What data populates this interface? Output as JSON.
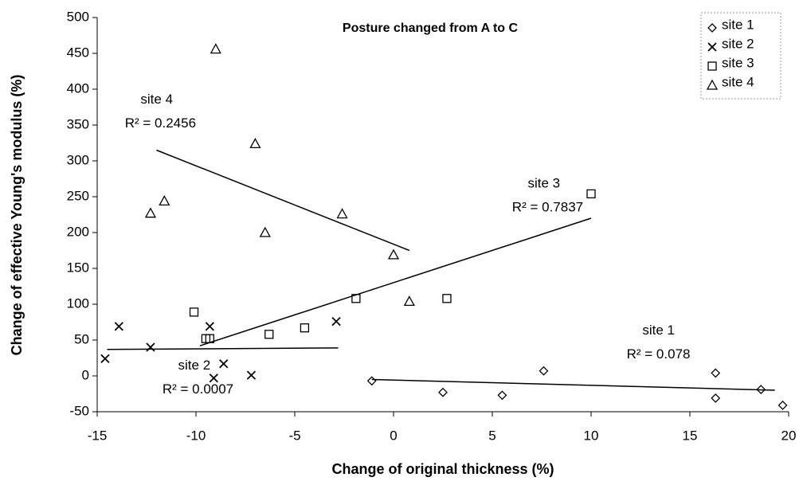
{
  "chart_data": {
    "type": "scatter",
    "title": "Posture changed from A to C",
    "x_label": "Change of original thickness (%)",
    "y_label": "Change of effective Young's modulus (%)",
    "xlim": [
      -15,
      20
    ],
    "xticks": [
      -15,
      -10,
      -5,
      0,
      5,
      10,
      15,
      20
    ],
    "ylim": [
      -50,
      500
    ],
    "yticks": [
      -50,
      0,
      50,
      100,
      150,
      200,
      250,
      300,
      350,
      400,
      450,
      500
    ],
    "grid": false,
    "legend": "upper right",
    "series": [
      {
        "name": "site 1",
        "marker": "diamond",
        "color": "#000000",
        "x": [
          -1.1,
          2.5,
          5.5,
          7.6,
          16.3,
          16.3,
          18.6,
          19.7
        ],
        "values": [
          -7,
          -23,
          -27,
          7,
          4,
          -31,
          -19,
          -41
        ]
      },
      {
        "name": "site 2",
        "marker": "x",
        "color": "#000000",
        "x": [
          -14.6,
          -13.9,
          -12.3,
          -9.1,
          -9.3,
          -8.6,
          -7.2,
          -2.9
        ],
        "values": [
          24,
          69,
          40,
          -3,
          69,
          17,
          1,
          76
        ]
      },
      {
        "name": "site 3",
        "marker": "square",
        "color": "#000000",
        "x": [
          -10.1,
          -9.5,
          -9.3,
          -6.3,
          -4.5,
          -1.9,
          2.7,
          10.0
        ],
        "values": [
          89,
          52,
          52,
          58,
          67,
          108,
          108,
          254
        ]
      },
      {
        "name": "site 4",
        "marker": "triangle",
        "color": "#000000",
        "x": [
          -12.3,
          -11.6,
          -9.0,
          -7.0,
          -6.5,
          -2.6,
          0,
          0.8
        ],
        "values": [
          227,
          244,
          456,
          324,
          200,
          226,
          169,
          104
        ]
      }
    ],
    "trendlines": [
      {
        "x": [
          -1.1,
          19.3
        ],
        "values": [
          -5,
          -20
        ]
      },
      {
        "x": [
          -14.5,
          -2.8
        ],
        "values": [
          37,
          39
        ]
      },
      {
        "x": [
          -9.8,
          10
        ],
        "values": [
          42,
          220
        ]
      },
      {
        "x": [
          -12,
          0.8
        ],
        "values": [
          315,
          175
        ]
      }
    ],
    "annotations": [
      {
        "text": "site 4",
        "sub": "R² = 0.2456",
        "x": -13.6,
        "y": 385
      },
      {
        "text": "site 3",
        "sub": "R² = 0.7837",
        "x": 6.0,
        "y": 268
      },
      {
        "text": "site 2",
        "sub": "R² = 0.0007",
        "x": -11.7,
        "y": 14
      },
      {
        "text": "site 1",
        "sub": "R² = 0.078",
        "x": 11.8,
        "y": 63
      }
    ]
  }
}
